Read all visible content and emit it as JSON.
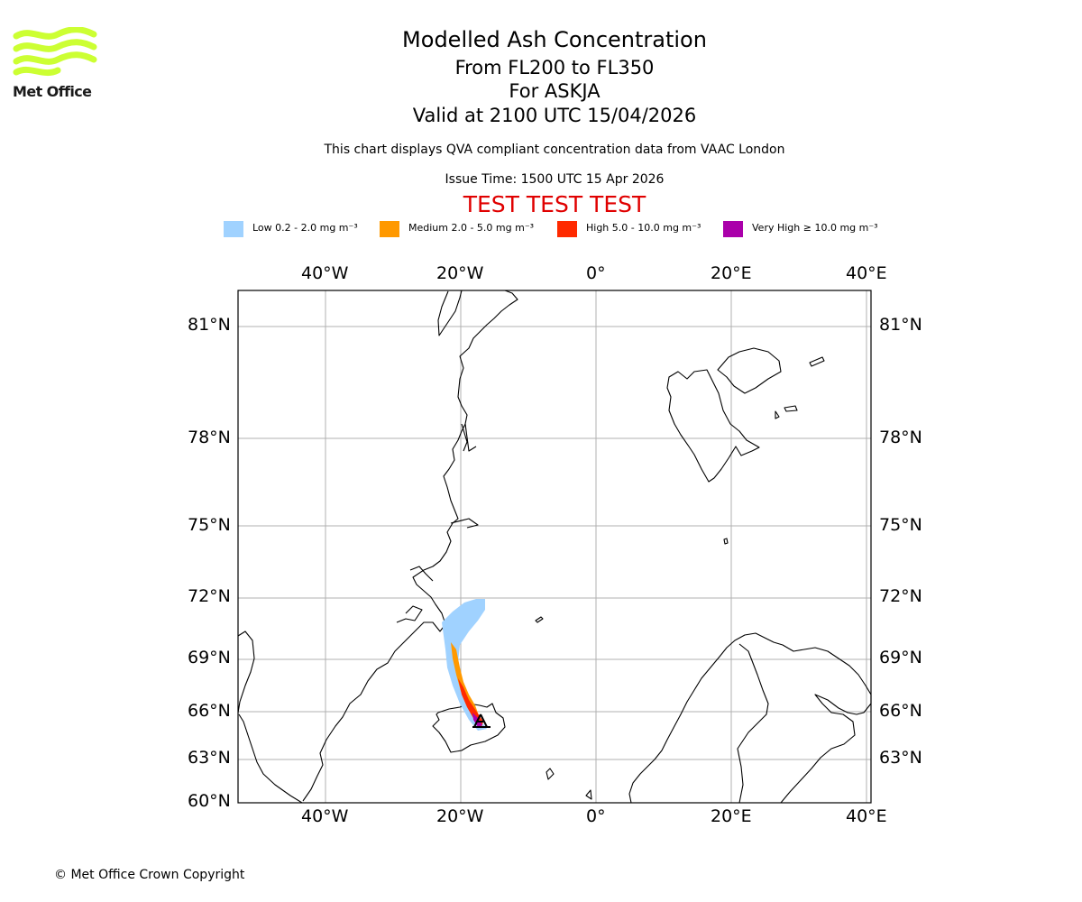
{
  "logo": {
    "text": "Met Office",
    "color": "#ccff33"
  },
  "header": {
    "title": "Modelled Ash Concentration",
    "levels": "From FL200 to FL350",
    "volcano": "For ASKJA",
    "valid": "Valid at 2100 UTC 15/04/2026",
    "description": "This chart displays QVA compliant concentration data from VAAC London",
    "issue": "Issue Time: 1500 UTC 15 Apr 2026",
    "test_banner": "TEST TEST TEST"
  },
  "legend": [
    {
      "name": "low",
      "label": "Low 0.2 - 2.0 mg m⁻³",
      "color": "#a0d2ff"
    },
    {
      "name": "medium",
      "label": "Medium 2.0 - 5.0 mg m⁻³",
      "color": "#ff9900"
    },
    {
      "name": "high",
      "label": "High 5.0 - 10.0 mg m⁻³",
      "color": "#ff2a00"
    },
    {
      "name": "very-high",
      "label": "Very High  ≥  10.0 mg m⁻³",
      "color": "#aa00aa"
    }
  ],
  "map": {
    "longitude_labels": [
      "40°W",
      "20°W",
      "0°",
      "20°E",
      "40°E"
    ],
    "latitude_labels": [
      "81°N",
      "78°N",
      "75°N",
      "72°N",
      "69°N",
      "66°N",
      "63°N",
      "60°N"
    ],
    "volcano_marker": "Askja"
  },
  "footer": {
    "copyright": "© Met Office Crown Copyright"
  }
}
